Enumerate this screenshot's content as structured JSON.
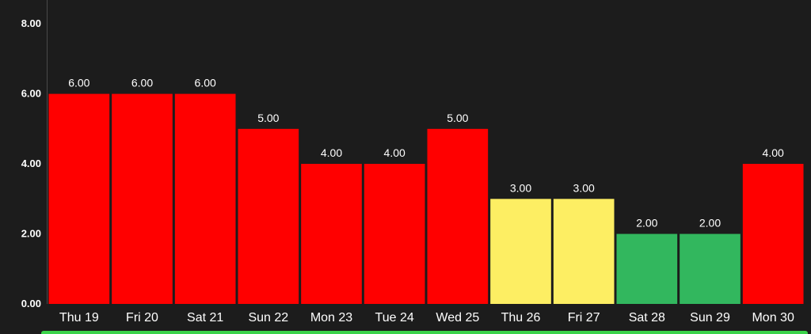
{
  "chart_data": {
    "type": "bar",
    "categories": [
      "Thu 19",
      "Fri 20",
      "Sat 21",
      "Sun 22",
      "Mon 23",
      "Tue 24",
      "Wed 25",
      "Thu 26",
      "Fri 27",
      "Sat 28",
      "Sun 29",
      "Mon 30"
    ],
    "values": [
      6,
      6,
      6,
      5,
      4,
      4,
      5,
      3,
      3,
      2,
      2,
      4
    ],
    "value_labels": [
      "6.00",
      "6.00",
      "6.00",
      "5.00",
      "4.00",
      "4.00",
      "5.00",
      "3.00",
      "3.00",
      "2.00",
      "2.00",
      "4.00"
    ],
    "bar_colors": [
      "#ff0000",
      "#ff0000",
      "#ff0000",
      "#ff0000",
      "#ff0000",
      "#ff0000",
      "#ff0000",
      "#fdee63",
      "#fdee63",
      "#32b75e",
      "#32b75e",
      "#ff0000"
    ],
    "yticks": [
      0,
      2,
      4,
      6,
      8
    ],
    "ytick_labels": [
      "0.00",
      "2.00",
      "4.00",
      "6.00",
      "8.00"
    ],
    "ylim": [
      0,
      8.5
    ],
    "grid": false,
    "legend": "none",
    "background_color": "#1c1c1c",
    "axis_color": "#4a4a4a",
    "bottom_bar_color": "#3ad34a"
  }
}
